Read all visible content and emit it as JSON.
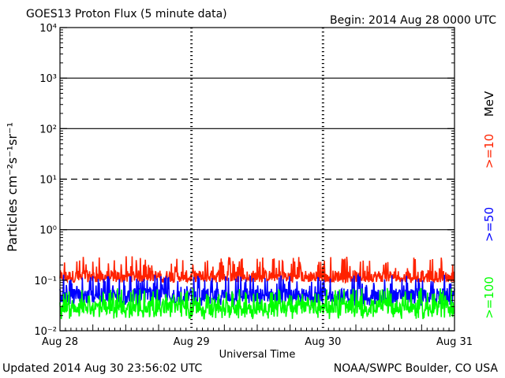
{
  "header": {
    "title": "GOES13 Proton Flux (5 minute data)",
    "begin": "Begin: 2014 Aug 28 0000 UTC"
  },
  "footer": {
    "updated": "Updated 2014 Aug 30 23:56:02 UTC",
    "credit": "NOAA/SWPC Boulder, CO USA"
  },
  "chart_data": {
    "type": "line",
    "title": "GOES13 Proton Flux (5 minute data)",
    "xlabel": "Universal Time",
    "ylabel": "Particles cm⁻²s⁻¹sr⁻¹",
    "y_scale": "log",
    "ylim": [
      0.01,
      10000
    ],
    "y_ticks": [
      {
        "value": 10000,
        "label": "10⁴"
      },
      {
        "value": 1000,
        "label": "10³"
      },
      {
        "value": 100,
        "label": "10²"
      },
      {
        "value": 10,
        "label": "10¹"
      },
      {
        "value": 1,
        "label": "10⁰"
      },
      {
        "value": 0.1,
        "label": "10⁻¹"
      },
      {
        "value": 0.01,
        "label": "10⁻²"
      }
    ],
    "x_ticks": [
      "Aug 28",
      "Aug 29",
      "Aug 30",
      "Aug 31"
    ],
    "x_start": "2014-08-28T00:00Z",
    "x_end": "2014-08-31T00:00Z",
    "gridlines": [
      {
        "value": 1000,
        "style": "solid"
      },
      {
        "value": 100,
        "style": "solid"
      },
      {
        "value": 10,
        "style": "dashed"
      },
      {
        "value": 1,
        "style": "solid"
      }
    ],
    "energy_unit": "MeV",
    "series": [
      {
        "name": ">=10",
        "color": "#ff2200",
        "typical": 0.12,
        "min": 0.09,
        "max": 0.3
      },
      {
        "name": ">=50",
        "color": "#0000ff",
        "typical": 0.05,
        "min": 0.03,
        "max": 0.13
      },
      {
        "name": ">=100",
        "color": "#00ff00",
        "typical": 0.03,
        "min": 0.017,
        "max": 0.07
      }
    ]
  }
}
